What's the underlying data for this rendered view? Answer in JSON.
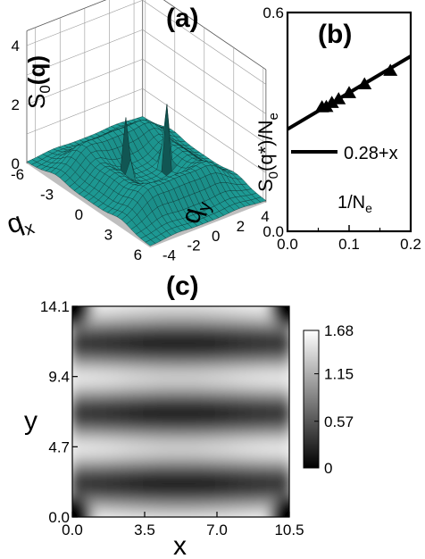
{
  "chart_data": [
    {
      "panel": "(a)",
      "type": "surface",
      "zlabel_main": "S",
      "zlabel_sub": "0",
      "zlabel_tail": "(q)",
      "xlabel_main": "q",
      "xlabel_sub": "x",
      "ylabel_main": "q",
      "ylabel_sub": "y",
      "z_ticks": [
        "0",
        "2",
        "4"
      ],
      "qx_ticks": [
        "-6",
        "-3",
        "0",
        "3",
        "6"
      ],
      "qy_ticks": [
        "-4",
        "-2",
        "0",
        "2",
        "4"
      ],
      "zlim": [
        0,
        4.5
      ],
      "qx_range": [
        -6.28,
        6.28
      ],
      "qy_range": [
        -4.7,
        4.7
      ],
      "peak_value": 4.3,
      "surface_color": "#1e9c96",
      "floor_color": "#bfbfbf"
    },
    {
      "panel": "(b)",
      "type": "scatter",
      "xlabel": "1/N",
      "xlabel_sub": "e",
      "ylabel_main": "S",
      "ylabel_sub0": "0",
      "ylabel_mid": "(q*)/N",
      "ylabel_sub": "e",
      "x_ticks": [
        "0.0",
        "0.1",
        "0.2"
      ],
      "y_ticks": [
        "0.0",
        "0.6"
      ],
      "xlim": [
        0,
        0.2
      ],
      "ylim": [
        0,
        0.6
      ],
      "series": [
        {
          "name": "",
          "x": [
            0.056,
            0.063,
            0.072,
            0.083,
            0.1,
            0.125,
            0.167
          ],
          "y": [
            0.34,
            0.341,
            0.352,
            0.362,
            0.379,
            0.403,
            0.44
          ]
        }
      ],
      "fit": {
        "label": "0.28+x",
        "intercept": 0.28,
        "slope": 1.0
      }
    },
    {
      "panel": "(c)",
      "type": "heatmap",
      "xlabel": "x",
      "ylabel": "y",
      "x_ticks": [
        "0.0",
        "3.5",
        "7.0",
        "10.5"
      ],
      "y_ticks": [
        "0.0",
        "4.7",
        "9.4",
        "14.1"
      ],
      "xlim": [
        0,
        10.5
      ],
      "ylim": [
        0,
        14.1
      ],
      "colorbar_ticks": [
        "0",
        "0.57",
        "1.15",
        "1.68"
      ],
      "zlim": [
        0,
        1.68
      ],
      "colormap": "grayscale"
    }
  ]
}
